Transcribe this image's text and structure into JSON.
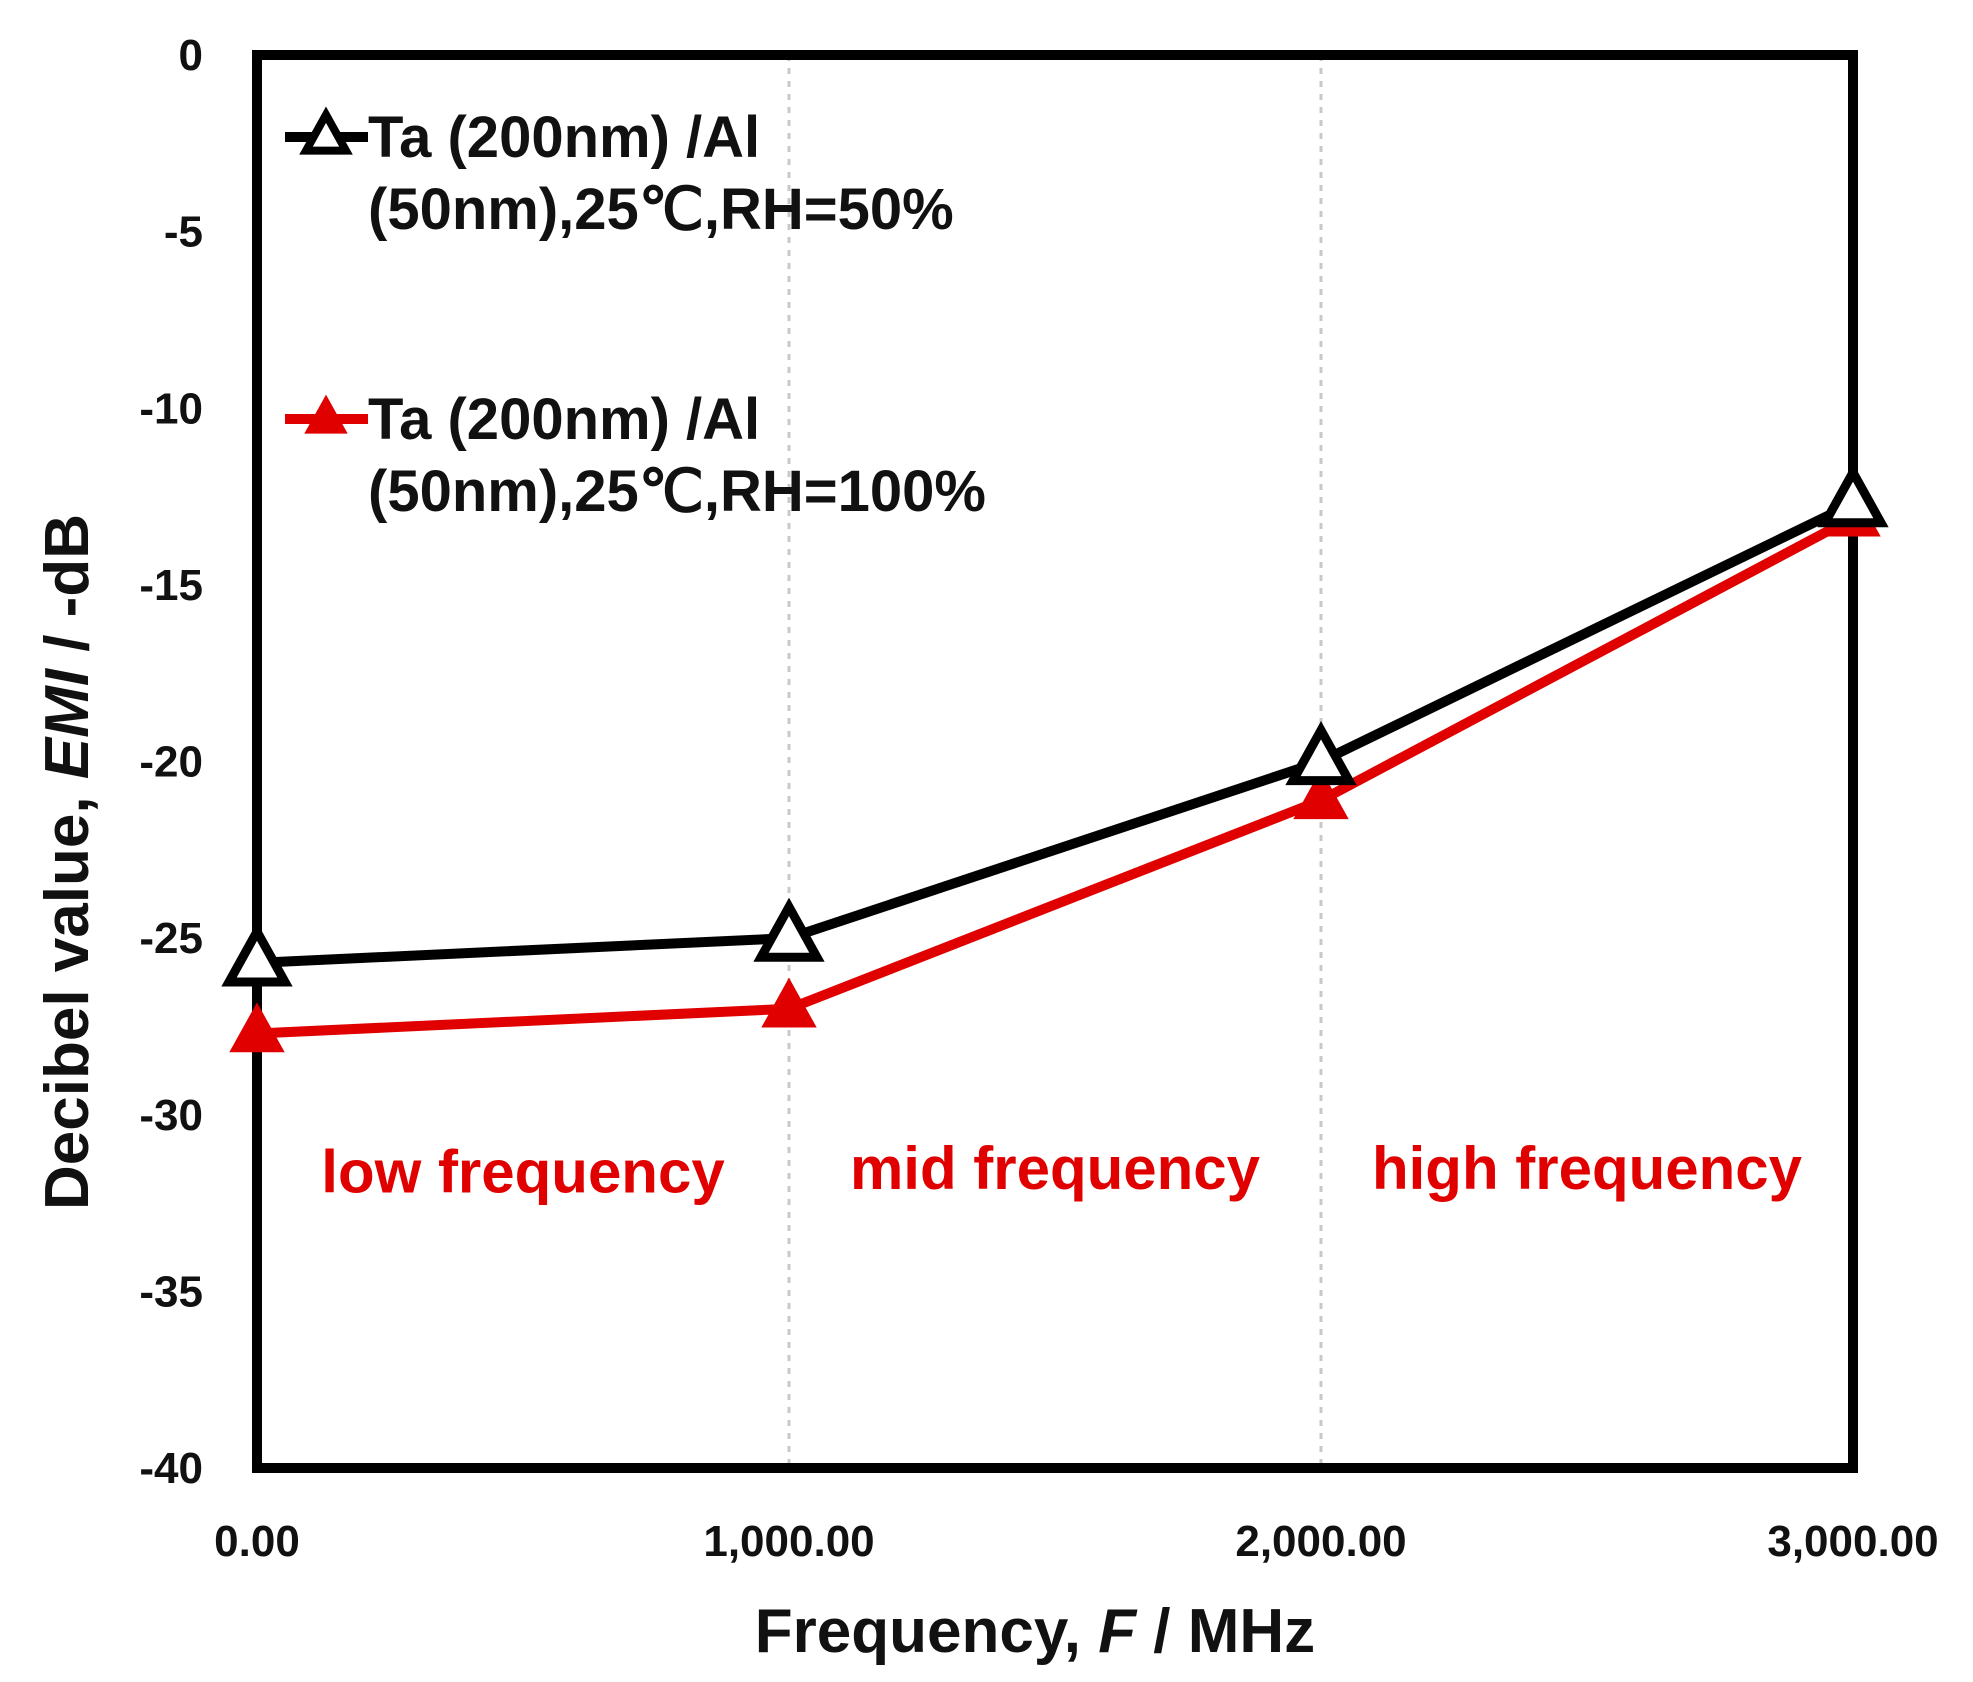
{
  "chart_data": {
    "type": "line",
    "title": "",
    "xlabel": {
      "prefix": "Frequency, ",
      "var": "F",
      "suffix": " / MHz"
    },
    "ylabel": {
      "prefix": "Decibel value, ",
      "var": "EMI",
      "suffix": " / -dB"
    },
    "xlim": [
      0,
      3000
    ],
    "ylim": [
      -40,
      0
    ],
    "xticks": [
      0,
      1000,
      2000,
      3000
    ],
    "xtick_labels": [
      "0.00",
      "1,000.00",
      "2,000.00",
      "3,000.00"
    ],
    "yticks": [
      0,
      -5,
      -10,
      -15,
      -20,
      -25,
      -30,
      -35,
      -40
    ],
    "ytick_labels": [
      "0",
      "-5",
      "-10",
      "-15",
      "-20",
      "-25",
      "-30",
      "-35",
      "-40"
    ],
    "grid": "vertical dotted",
    "legend_position": "top-left",
    "series": [
      {
        "name": "Ta (200nm) /Al (50nm),25℃,RH=50%",
        "legend_lines": [
          "Ta (200nm) /Al",
          "(50nm),25℃,RH=50%"
        ],
        "color": "#000000",
        "marker": "open-triangle",
        "x": [
          0,
          1000,
          2000,
          3000
        ],
        "y": [
          -25.7,
          -25.0,
          -20.0,
          -12.7
        ]
      },
      {
        "name": "Ta (200nm) /Al (50nm),25℃,RH=100%",
        "legend_lines": [
          "Ta (200nm) /Al",
          "(50nm),25℃,RH=100%"
        ],
        "color": "#e00000",
        "marker": "filled-triangle",
        "x": [
          0,
          1000,
          2000,
          3000
        ],
        "y": [
          -27.7,
          -27.0,
          -21.1,
          -13.1
        ]
      }
    ],
    "annotations": [
      {
        "text": "low frequency",
        "x": 500,
        "y": -32.2,
        "color": "#e00000"
      },
      {
        "text": "mid frequency",
        "x": 1500,
        "y": -32.1,
        "color": "#e00000"
      },
      {
        "text": "high frequency",
        "x": 2500,
        "y": -32.1,
        "color": "#e00000"
      }
    ]
  }
}
